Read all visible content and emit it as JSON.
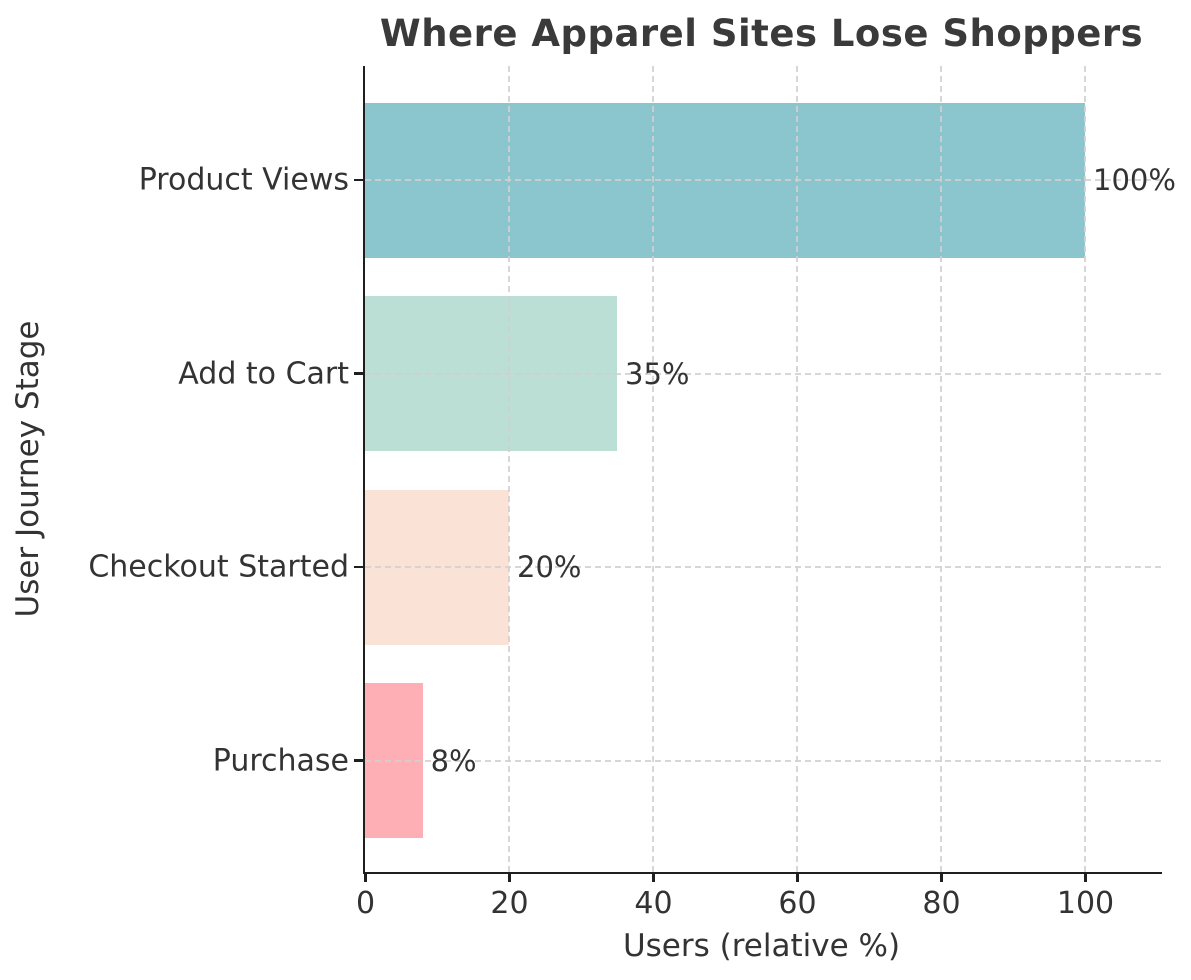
{
  "chart_data": {
    "type": "bar",
    "orientation": "horizontal",
    "title": "Where Apparel Sites Lose Shoppers",
    "xlabel": "Users (relative %)",
    "ylabel": "User Journey Stage",
    "categories": [
      "Product Views",
      "Add to Cart",
      "Checkout Started",
      "Purchase"
    ],
    "values": [
      100,
      35,
      20,
      8
    ],
    "value_labels": [
      "100%",
      "35%",
      "20%",
      "8%"
    ],
    "bar_colors": [
      "#8bc5ce",
      "#bcdfd5",
      "#fae2d7",
      "#fdafb5"
    ],
    "xticks": [
      0,
      20,
      40,
      60,
      80,
      100
    ],
    "xlim": [
      0,
      110
    ],
    "grid": "dashed",
    "legend": "none",
    "styles": {
      "background": "#ffffff",
      "title_color": "#3a3a3a",
      "text_color": "#333333",
      "spine_color": "#1f1f1f",
      "grid_color": "#d0d0d0"
    }
  }
}
